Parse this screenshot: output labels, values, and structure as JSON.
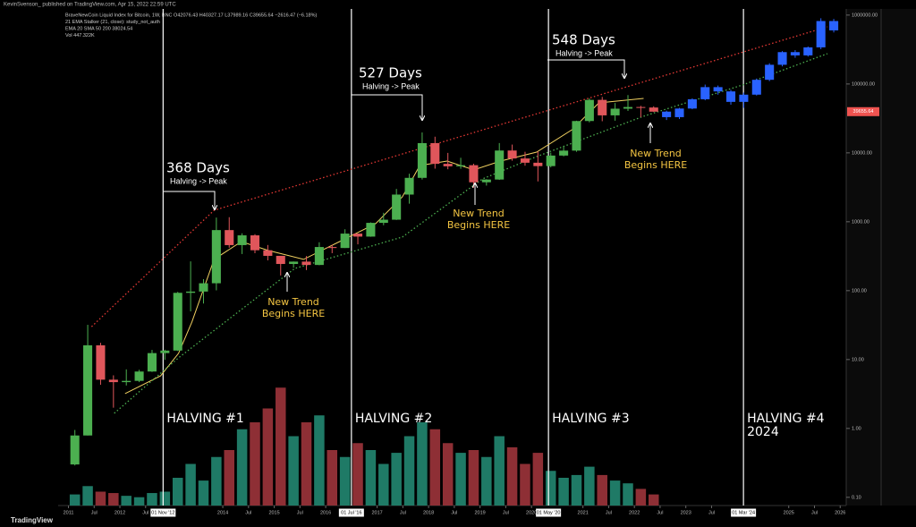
{
  "header": "KevinSvenson_ published on TradingView.com, Apr 15, 2022 22:59 UTC",
  "footer": "TradingView",
  "chart_data": {
    "type": "candlestick",
    "legend_lines": [
      "BraveNewCoin Liquid Index for Bitcoin, 1W, BNC  O42076.43  H40327.17  L37989.16  C39655.64  −2616.47 (−6.18%)",
      "21 EMA Stalker (21, close): study_not_auth",
      "EMA 20 SMA 50 200  38024.54",
      "Vol  447.322K"
    ],
    "log_scale": true,
    "grid": false,
    "xlim": [
      2010.8,
      2026.1
    ],
    "ylim": [
      0.076,
      1228000
    ],
    "vlim": [
      0,
      100
    ],
    "xticks": [
      2011,
      {
        "value": 2011.5,
        "label": "Jul"
      },
      2012,
      {
        "value": 2012.5,
        "label": "Jul"
      },
      2014,
      {
        "value": 2014.5,
        "label": "Jul"
      },
      2015,
      {
        "value": 2015.5,
        "label": "Jul"
      },
      2016,
      2017,
      {
        "value": 2017.5,
        "label": "Jul"
      },
      2018,
      {
        "value": 2018.5,
        "label": "Jul"
      },
      2019,
      {
        "value": 2019.5,
        "label": "Jul"
      },
      2020,
      2021,
      {
        "value": 2021.5,
        "label": "Jul"
      },
      2022,
      {
        "value": 2022.5,
        "label": "Jul"
      },
      2023,
      {
        "value": 2023.5,
        "label": "Jul"
      },
      2025,
      {
        "value": 2025.5,
        "label": "Jul"
      },
      2026
    ],
    "yticks": [
      {
        "value": 0.1,
        "label": "0.10"
      },
      {
        "value": 1,
        "label": "1.00"
      },
      {
        "value": 10,
        "label": "10.00"
      },
      {
        "value": 100,
        "label": "100.00"
      },
      {
        "value": 1000,
        "label": "1000.00"
      },
      {
        "value": 10000,
        "label": "10000.00"
      },
      {
        "value": 100000,
        "label": "100000.00"
      },
      {
        "value": 1000000,
        "label": "1000000.00"
      }
    ],
    "up_color": "#4caf50",
    "down_color": "#e0565b",
    "volume_up_color": "#1f7a66",
    "volume_down_color": "#8e2f35",
    "candles": {
      "x": [
        2011.125,
        2011.375,
        2011.625,
        2011.875,
        2012.125,
        2012.375,
        2012.625,
        2012.875,
        2013.125,
        2013.375,
        2013.625,
        2013.875,
        2014.125,
        2014.375,
        2014.625,
        2014.875,
        2015.125,
        2015.375,
        2015.625,
        2015.875,
        2016.125,
        2016.375,
        2016.625,
        2016.875,
        2017.125,
        2017.375,
        2017.625,
        2017.875,
        2018.125,
        2018.375,
        2018.625,
        2018.875,
        2019.125,
        2019.375,
        2019.625,
        2019.875,
        2020.125,
        2020.375,
        2020.625,
        2020.875,
        2021.125,
        2021.375,
        2021.625,
        2021.875,
        2022.125,
        2022.375
      ],
      "open": [
        0.3,
        0.79,
        16.1,
        5.1,
        4.7,
        4.9,
        6.7,
        12.4,
        13.5,
        93,
        97,
        128,
        757,
        458,
        635,
        386,
        320,
        244,
        264,
        236,
        430,
        416,
        673,
        609,
        964,
        1071,
        2480,
        4338,
        13860,
        6928,
        6385,
        6626,
        3742,
        4102,
        10817,
        8294,
        7193,
        6424,
        9140,
        10780,
        28990,
        58800,
        35040,
        43790,
        46300,
        45540
      ],
      "high": [
        0.95,
        31.9,
        17.5,
        5.9,
        7.2,
        7.1,
        13.8,
        13.9,
        96,
        266,
        147,
        1150,
        1165,
        680,
        660,
        460,
        320,
        265,
        318,
        504,
        463,
        778,
        675,
        979,
        1350,
        2999,
        4980,
        19780,
        17170,
        9990,
        8490,
        6960,
        4150,
        13880,
        13200,
        10370,
        10500,
        10080,
        12480,
        29300,
        61780,
        64850,
        52920,
        69000,
        48200,
        47440
      ],
      "low": [
        0.29,
        0.79,
        4.3,
        2.0,
        4.2,
        4.7,
        6.6,
        9.9,
        13.3,
        50,
        65,
        101,
        420,
        340,
        350,
        275,
        166,
        215,
        199,
        234,
        350,
        416,
        470,
        605,
        890,
        1061,
        1830,
        4100,
        5900,
        5780,
        5880,
        3122,
        3350,
        4050,
        7700,
        6510,
        3850,
        6150,
        8900,
        10370,
        27730,
        28800,
        29280,
        40600,
        32950,
        39200
      ],
      "close": [
        0.79,
        16.1,
        5.1,
        4.7,
        4.9,
        6.7,
        12.4,
        13.5,
        93,
        97,
        128,
        757,
        458,
        635,
        386,
        320,
        244,
        264,
        236,
        430,
        416,
        673,
        609,
        964,
        1071,
        2480,
        4338,
        13860,
        6928,
        6385,
        6626,
        3742,
        4102,
        10817,
        8294,
        7193,
        6424,
        9140,
        10780,
        28990,
        58800,
        35040,
        43790,
        46300,
        45540,
        39655.64
      ],
      "volume": [
        8,
        14,
        10,
        9,
        7,
        6,
        9,
        10,
        20,
        30,
        18,
        35,
        40,
        55,
        60,
        70,
        85,
        50,
        60,
        65,
        40,
        35,
        45,
        40,
        30,
        38,
        50,
        60,
        55,
        45,
        38,
        40,
        35,
        50,
        42,
        30,
        38,
        25,
        20,
        22,
        28,
        22,
        18,
        16,
        12,
        8
      ]
    },
    "projection": {
      "color": "#2962ff",
      "x": [
        2022.625,
        2022.875,
        2023.125,
        2023.375,
        2023.625,
        2023.875,
        2024.125,
        2024.375,
        2024.625,
        2024.875,
        2025.125,
        2025.375,
        2025.625,
        2025.875
      ],
      "open": [
        39700,
        33000,
        44000,
        60000,
        90000,
        78000,
        55000,
        70000,
        115000,
        190000,
        290000,
        260000,
        340000,
        820000
      ],
      "high": [
        41000,
        45000,
        62000,
        98000,
        95000,
        82000,
        75000,
        120000,
        200000,
        300000,
        310000,
        350000,
        900000,
        880000
      ],
      "low": [
        30000,
        31000,
        43000,
        58000,
        70000,
        50000,
        45000,
        68000,
        110000,
        180000,
        240000,
        250000,
        320000,
        560000
      ],
      "close": [
        33000,
        44000,
        60000,
        90000,
        78000,
        55000,
        70000,
        115000,
        190000,
        290000,
        260000,
        340000,
        820000,
        600000
      ]
    },
    "lines": [
      {
        "color": "#f0d060",
        "dash": false,
        "x": [
          2012.1,
          2012.79,
          2013.14,
          2013.4,
          2013.83,
          2014.36,
          2014.88,
          2015.57,
          2016.27,
          2016.97,
          2017.49,
          2017.83,
          2018.36,
          2018.88,
          2019.4,
          2020.1,
          2020.79,
          2021.31,
          2021.83,
          2022.18
        ],
        "values": [
          3.2,
          5.8,
          12.3,
          35,
          284,
          516,
          383,
          284,
          516,
          938,
          2300,
          6550,
          7600,
          5650,
          7600,
          10250,
          21700,
          53200,
          58200,
          61800
        ]
      },
      {
        "color": "#4caf50",
        "dash": true,
        "x": [
          2011.89,
          2013.14,
          2015.4,
          2017.49,
          2019.05,
          2020.1,
          2022.18,
          2024.1,
          2025.75
        ],
        "values": [
          1.66,
          10.6,
          210,
          600,
          4190,
          8830,
          34000,
          96600,
          275000
        ]
      },
      {
        "color": "#e53935",
        "dash": true,
        "x": [
          2011.45,
          2013.83,
          2025.75
        ],
        "values": [
          30,
          1470,
          675000
        ]
      }
    ],
    "halvings": [
      {
        "x": 2012.84,
        "date_label": "01 Nov '12",
        "label": "HALVING #1"
      },
      {
        "x": 2016.5,
        "date_label": "01 Jul '16",
        "label": "HALVING #2"
      },
      {
        "x": 2020.33,
        "date_label": "01 May '20",
        "label": "HALVING #3"
      },
      {
        "x": 2024.12,
        "date_label": "01 Mar '24",
        "label": "HALVING #4",
        "year": "2024"
      }
    ],
    "annotations": [
      {
        "days": "368 Days",
        "note": "Halving -> Peak"
      },
      {
        "days": "527 Days",
        "note": "Halving -> Peak"
      },
      {
        "days": "548 Days",
        "note": "Halving -> Peak"
      }
    ],
    "trend_notes": [
      {
        "line1": "New Trend",
        "line2": "Begins HERE"
      },
      {
        "line1": "New Trend",
        "line2": "Begins HERE"
      },
      {
        "line1": "New Trend",
        "line2": "Begins HERE"
      }
    ],
    "price_tag_color": "#ef5350"
  }
}
